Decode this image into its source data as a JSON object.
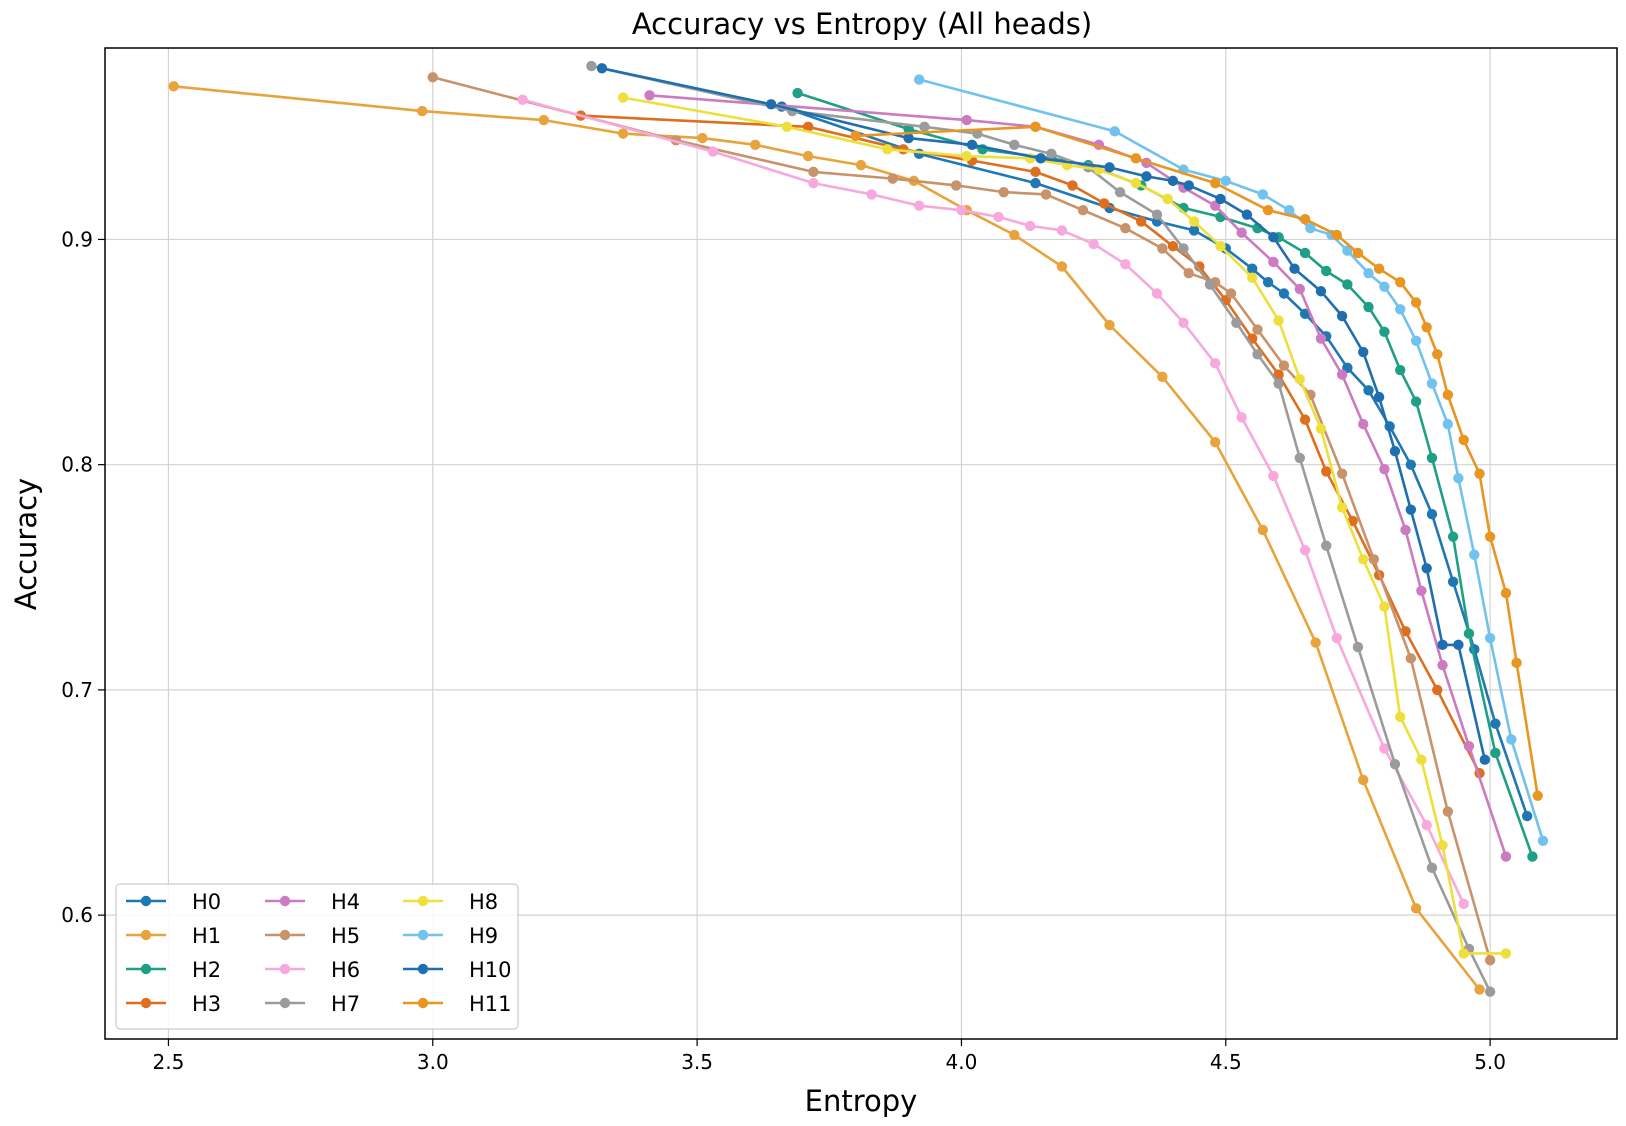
{
  "chart_data": {
    "type": "line",
    "title": "Accuracy vs Entropy (All heads)",
    "xlabel": "Entropy",
    "ylabel": "Accuracy",
    "xlim": [
      2.38,
      5.24
    ],
    "ylim": [
      0.545,
      0.985
    ],
    "xticks": [
      2.5,
      3.0,
      3.5,
      4.0,
      4.5,
      5.0
    ],
    "xtick_labels": [
      "2.5",
      "3.0",
      "3.5",
      "4.0",
      "4.5",
      "5.0"
    ],
    "yticks": [
      0.6,
      0.7,
      0.8,
      0.9
    ],
    "ytick_labels": [
      "0.6",
      "0.7",
      "0.8",
      "0.9"
    ],
    "grid": true,
    "legend_position": "bottom-left",
    "legend_columns": 3,
    "series": [
      {
        "name": "H0",
        "color": "#1f77b4",
        "x": [
          3.66,
          3.92,
          4.14,
          4.28,
          4.37,
          4.44,
          4.5,
          4.55,
          4.58,
          4.61,
          4.65,
          4.69,
          4.73,
          4.77,
          4.81,
          4.85,
          4.89,
          4.93,
          4.97,
          5.01,
          5.07
        ],
        "y": [
          0.959,
          0.938,
          0.925,
          0.914,
          0.908,
          0.904,
          0.896,
          0.887,
          0.881,
          0.876,
          0.867,
          0.857,
          0.843,
          0.833,
          0.817,
          0.8,
          0.778,
          0.748,
          0.718,
          0.685,
          0.644
        ]
      },
      {
        "name": "H1",
        "color": "#e8a33d",
        "x": [
          2.51,
          2.98,
          3.21,
          3.36,
          3.51,
          3.61,
          3.71,
          3.81,
          3.91,
          4.01,
          4.1,
          4.19,
          4.28,
          4.38,
          4.48,
          4.57,
          4.67,
          4.76,
          4.86,
          4.98
        ],
        "y": [
          0.968,
          0.957,
          0.953,
          0.947,
          0.945,
          0.942,
          0.937,
          0.933,
          0.926,
          0.913,
          0.902,
          0.888,
          0.862,
          0.839,
          0.81,
          0.771,
          0.721,
          0.66,
          0.603,
          0.567
        ]
      },
      {
        "name": "H2",
        "color": "#1fa085",
        "x": [
          3.69,
          3.9,
          4.04,
          4.17,
          4.24,
          4.34,
          4.42,
          4.49,
          4.56,
          4.6,
          4.65,
          4.69,
          4.73,
          4.77,
          4.8,
          4.83,
          4.86,
          4.89,
          4.93,
          4.96,
          5.01,
          5.08
        ],
        "y": [
          0.965,
          0.949,
          0.94,
          0.936,
          0.933,
          0.924,
          0.914,
          0.91,
          0.905,
          0.901,
          0.894,
          0.886,
          0.88,
          0.87,
          0.859,
          0.842,
          0.828,
          0.803,
          0.768,
          0.725,
          0.672,
          0.626
        ]
      },
      {
        "name": "H3",
        "color": "#de6f1f",
        "x": [
          3.28,
          3.71,
          3.89,
          4.02,
          4.14,
          4.21,
          4.27,
          4.34,
          4.4,
          4.45,
          4.5,
          4.55,
          4.6,
          4.65,
          4.69,
          4.74,
          4.79,
          4.84,
          4.9,
          4.98
        ],
        "y": [
          0.955,
          0.95,
          0.94,
          0.935,
          0.93,
          0.924,
          0.916,
          0.908,
          0.897,
          0.888,
          0.873,
          0.856,
          0.84,
          0.82,
          0.797,
          0.775,
          0.751,
          0.726,
          0.7,
          0.663
        ]
      },
      {
        "name": "H4",
        "color": "#cc7ac1",
        "x": [
          3.41,
          4.01,
          4.14,
          4.26,
          4.35,
          4.42,
          4.48,
          4.53,
          4.59,
          4.64,
          4.68,
          4.72,
          4.76,
          4.8,
          4.84,
          4.87,
          4.91,
          4.96,
          5.03
        ],
        "y": [
          0.964,
          0.953,
          0.95,
          0.942,
          0.934,
          0.923,
          0.915,
          0.903,
          0.89,
          0.878,
          0.856,
          0.84,
          0.818,
          0.798,
          0.771,
          0.744,
          0.711,
          0.675,
          0.626
        ]
      },
      {
        "name": "H5",
        "color": "#c8926a",
        "x": [
          3.0,
          3.46,
          3.72,
          3.87,
          3.99,
          4.08,
          4.16,
          4.23,
          4.31,
          4.38,
          4.43,
          4.48,
          4.51,
          4.56,
          4.61,
          4.66,
          4.72,
          4.78,
          4.85,
          4.92,
          5.0
        ],
        "y": [
          0.972,
          0.944,
          0.93,
          0.927,
          0.924,
          0.921,
          0.92,
          0.913,
          0.905,
          0.896,
          0.885,
          0.881,
          0.876,
          0.86,
          0.844,
          0.831,
          0.796,
          0.758,
          0.714,
          0.646,
          0.58
        ]
      },
      {
        "name": "H6",
        "color": "#f7a8dc",
        "x": [
          3.17,
          3.53,
          3.72,
          3.83,
          3.92,
          4.0,
          4.07,
          4.13,
          4.19,
          4.25,
          4.31,
          4.37,
          4.42,
          4.48,
          4.53,
          4.59,
          4.65,
          4.71,
          4.8,
          4.88,
          4.95
        ],
        "y": [
          0.962,
          0.939,
          0.925,
          0.92,
          0.915,
          0.913,
          0.91,
          0.906,
          0.904,
          0.898,
          0.889,
          0.876,
          0.863,
          0.845,
          0.821,
          0.795,
          0.762,
          0.723,
          0.674,
          0.64,
          0.605
        ]
      },
      {
        "name": "H7",
        "color": "#9b9b9b",
        "x": [
          3.3,
          3.68,
          3.93,
          4.03,
          4.1,
          4.17,
          4.24,
          4.3,
          4.37,
          4.42,
          4.47,
          4.52,
          4.56,
          4.6,
          4.64,
          4.69,
          4.75,
          4.82,
          4.89,
          4.96,
          5.0
        ],
        "y": [
          0.977,
          0.957,
          0.95,
          0.947,
          0.942,
          0.938,
          0.932,
          0.921,
          0.911,
          0.896,
          0.88,
          0.863,
          0.849,
          0.836,
          0.803,
          0.764,
          0.719,
          0.667,
          0.621,
          0.585,
          0.566
        ]
      },
      {
        "name": "H8",
        "color": "#eedf3c",
        "x": [
          3.36,
          3.67,
          3.86,
          4.01,
          4.13,
          4.2,
          4.26,
          4.33,
          4.39,
          4.44,
          4.49,
          4.55,
          4.6,
          4.64,
          4.68,
          4.72,
          4.76,
          4.8,
          4.83,
          4.87,
          4.91,
          4.95,
          5.03
        ],
        "y": [
          0.963,
          0.95,
          0.94,
          0.937,
          0.936,
          0.933,
          0.931,
          0.925,
          0.918,
          0.908,
          0.897,
          0.883,
          0.864,
          0.838,
          0.816,
          0.781,
          0.758,
          0.737,
          0.688,
          0.669,
          0.631,
          0.583,
          0.583
        ]
      },
      {
        "name": "H9",
        "color": "#71c2ee",
        "x": [
          3.92,
          4.29,
          4.42,
          4.5,
          4.57,
          4.62,
          4.66,
          4.7,
          4.73,
          4.77,
          4.8,
          4.83,
          4.86,
          4.89,
          4.92,
          4.94,
          4.97,
          5.0,
          5.04,
          5.1
        ],
        "y": [
          0.971,
          0.948,
          0.931,
          0.926,
          0.92,
          0.913,
          0.905,
          0.902,
          0.895,
          0.885,
          0.879,
          0.869,
          0.855,
          0.836,
          0.818,
          0.794,
          0.76,
          0.723,
          0.678,
          0.633
        ]
      },
      {
        "name": "H10",
        "color": "#1f6fb0",
        "x": [
          3.32,
          3.64,
          3.9,
          4.02,
          4.15,
          4.28,
          4.35,
          4.4,
          4.43,
          4.49,
          4.54,
          4.59,
          4.63,
          4.68,
          4.72,
          4.76,
          4.79,
          4.82,
          4.85,
          4.88,
          4.91,
          4.94,
          4.99
        ],
        "y": [
          0.976,
          0.96,
          0.945,
          0.942,
          0.936,
          0.932,
          0.928,
          0.926,
          0.924,
          0.918,
          0.911,
          0.901,
          0.887,
          0.877,
          0.866,
          0.85,
          0.83,
          0.806,
          0.78,
          0.754,
          0.72,
          0.72,
          0.669
        ]
      },
      {
        "name": "H11",
        "color": "#e89521",
        "x": [
          3.8,
          4.14,
          4.33,
          4.48,
          4.58,
          4.65,
          4.71,
          4.75,
          4.79,
          4.83,
          4.86,
          4.88,
          4.9,
          4.92,
          4.95,
          4.98,
          5.0,
          5.03,
          5.05,
          5.09
        ],
        "y": [
          0.946,
          0.95,
          0.936,
          0.925,
          0.913,
          0.909,
          0.902,
          0.894,
          0.887,
          0.881,
          0.872,
          0.861,
          0.849,
          0.831,
          0.811,
          0.796,
          0.768,
          0.743,
          0.712,
          0.653
        ]
      }
    ]
  }
}
